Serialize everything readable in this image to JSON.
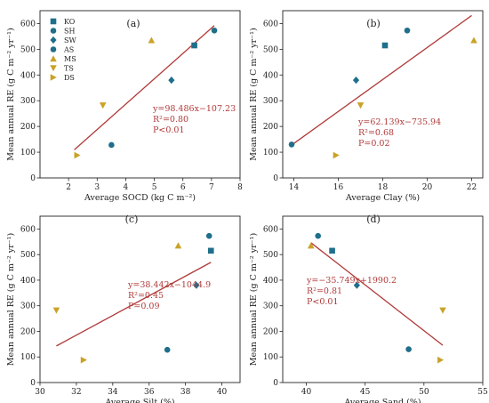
{
  "legend": {
    "entries": [
      {
        "code": "KO",
        "marker": "square",
        "color": "#1f6f8b"
      },
      {
        "code": "SH",
        "marker": "circle",
        "color": "#1f6f8b"
      },
      {
        "code": "SW",
        "marker": "diamond",
        "color": "#1f6f8b"
      },
      {
        "code": "AS",
        "marker": "circle",
        "color": "#1f6f8b"
      },
      {
        "code": "MS",
        "marker": "triangle-up",
        "color": "#c9a227"
      },
      {
        "code": "TS",
        "marker": "triangle-down",
        "color": "#c9a227"
      },
      {
        "code": "DS",
        "marker": "triangle-right",
        "color": "#c9a227"
      }
    ]
  },
  "colors": {
    "line": "#b03a3a",
    "points_blue": "#1f6f8b",
    "points_gold": "#c9a227"
  },
  "chart_data": [
    {
      "type": "scatter",
      "panel": "(a)",
      "xlabel": "Average SOCD (kg C m⁻²)",
      "ylabel": "Mean annual RE (g C m⁻² yr⁻¹)",
      "xlim": [
        1,
        8
      ],
      "ylim": [
        0,
        650
      ],
      "xticks": [
        2,
        3,
        4,
        5,
        6,
        7,
        8
      ],
      "yticks": [
        0,
        100,
        200,
        300,
        400,
        500,
        600
      ],
      "points": [
        {
          "code": "KO",
          "x": 6.4,
          "y": 515
        },
        {
          "code": "SH",
          "x": 7.1,
          "y": 573
        },
        {
          "code": "SW",
          "x": 5.6,
          "y": 380
        },
        {
          "code": "AS",
          "x": 3.5,
          "y": 128
        },
        {
          "code": "MS",
          "x": 4.9,
          "y": 535
        },
        {
          "code": "TS",
          "x": 3.2,
          "y": 282
        },
        {
          "code": "DS",
          "x": 2.3,
          "y": 88
        }
      ],
      "fit": {
        "x_range": [
          2.2,
          7.1
        ],
        "slope": 98.486,
        "intercept": -107.23
      },
      "equation": [
        "y=98.486x−107.23",
        "R²=0.80",
        "P<0.01"
      ]
    },
    {
      "type": "scatter",
      "panel": "(b)",
      "xlabel": "Average Clay (%)",
      "ylabel": "Mean annual RE (g C m⁻² yr⁻¹)",
      "xlim": [
        13.5,
        22.5
      ],
      "ylim": [
        0,
        650
      ],
      "xticks": [
        14,
        16,
        18,
        20,
        22
      ],
      "yticks": [
        0,
        100,
        200,
        300,
        400,
        500,
        600
      ],
      "points": [
        {
          "code": "KO",
          "x": 18.1,
          "y": 515
        },
        {
          "code": "SH",
          "x": 19.1,
          "y": 573
        },
        {
          "code": "SW",
          "x": 16.8,
          "y": 380
        },
        {
          "code": "AS",
          "x": 13.9,
          "y": 130
        },
        {
          "code": "MS",
          "x": 22.1,
          "y": 535
        },
        {
          "code": "TS",
          "x": 17.0,
          "y": 282
        },
        {
          "code": "DS",
          "x": 15.9,
          "y": 88
        }
      ],
      "fit": {
        "x_range": [
          13.9,
          22.0
        ],
        "slope": 62.139,
        "intercept": -735.94
      },
      "equation": [
        "y=62.139x−735.94",
        "R²=0.68",
        "P=0.02"
      ]
    },
    {
      "type": "scatter",
      "panel": "(c)",
      "xlabel": "Average Silt (%)",
      "ylabel": "Mean annual RE (g C m⁻² yr⁻¹)",
      "xlim": [
        30,
        41
      ],
      "ylim": [
        0,
        650
      ],
      "xticks": [
        30,
        32,
        34,
        36,
        38,
        40
      ],
      "yticks": [
        0,
        100,
        200,
        300,
        400,
        500,
        600
      ],
      "points": [
        {
          "code": "KO",
          "x": 39.4,
          "y": 515
        },
        {
          "code": "SH",
          "x": 39.3,
          "y": 573
        },
        {
          "code": "SW",
          "x": 38.6,
          "y": 380
        },
        {
          "code": "AS",
          "x": 37.0,
          "y": 128
        },
        {
          "code": "MS",
          "x": 37.6,
          "y": 535
        },
        {
          "code": "TS",
          "x": 30.9,
          "y": 282
        },
        {
          "code": "DS",
          "x": 32.4,
          "y": 88
        }
      ],
      "fit": {
        "x_range": [
          30.9,
          39.4
        ],
        "slope": 38.442,
        "intercept": -1044.9
      },
      "equation": [
        "y=38.442x−1044.9",
        "R²=0.45",
        "P=0.09"
      ]
    },
    {
      "type": "scatter",
      "panel": "(d)",
      "xlabel": "Average Sand (%)",
      "ylabel": "Mean annual RE (g C m⁻² yr⁻¹)",
      "xlim": [
        38,
        55
      ],
      "ylim": [
        0,
        650
      ],
      "xticks": [
        40,
        45,
        50,
        55
      ],
      "yticks": [
        0,
        100,
        200,
        300,
        400,
        500,
        600
      ],
      "points": [
        {
          "code": "KO",
          "x": 42.2,
          "y": 515
        },
        {
          "code": "SH",
          "x": 41.0,
          "y": 573
        },
        {
          "code": "SW",
          "x": 44.3,
          "y": 380
        },
        {
          "code": "AS",
          "x": 48.7,
          "y": 130
        },
        {
          "code": "MS",
          "x": 40.4,
          "y": 535
        },
        {
          "code": "TS",
          "x": 51.6,
          "y": 282
        },
        {
          "code": "DS",
          "x": 51.4,
          "y": 88
        }
      ],
      "fit": {
        "x_range": [
          40.4,
          51.6
        ],
        "slope": -35.749,
        "intercept": 1990.2
      },
      "equation": [
        "y=−35.749x+1990.2",
        "R²=0.81",
        "P<0.01"
      ]
    }
  ]
}
